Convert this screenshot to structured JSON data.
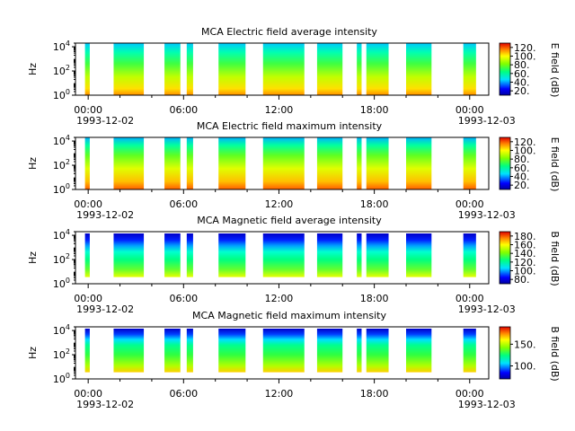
{
  "chart_data": [
    {
      "type": "heatmap",
      "title": "MCA  Electric field average intensity",
      "ylabel": "Hz",
      "yscale": "log",
      "ylim": [
        1,
        20000
      ],
      "y_ticks": [
        {
          "base": "10",
          "exp": "0"
        },
        {
          "base": "10",
          "exp": "2"
        },
        {
          "base": "10",
          "exp": "4"
        }
      ],
      "x_ticks": [
        {
          "time": "00:00",
          "date": "1993-12-02"
        },
        {
          "time": "06:00",
          "date": ""
        },
        {
          "time": "12:00",
          "date": ""
        },
        {
          "time": "18:00",
          "date": ""
        },
        {
          "time": "00:00",
          "date": "1993-12-03"
        }
      ],
      "colorbar": {
        "label": "E field (dB)",
        "range": [
          10,
          130
        ],
        "ticks": [
          "20.",
          "40.",
          "60.",
          "80.",
          "100.",
          "120."
        ]
      },
      "segments_hours": [
        [
          -0.2,
          0.1
        ],
        [
          1.6,
          3.5
        ],
        [
          4.8,
          5.8
        ],
        [
          6.2,
          6.6
        ],
        [
          8.2,
          9.9
        ],
        [
          11.0,
          13.6
        ],
        [
          14.4,
          16.0
        ],
        [
          16.9,
          17.2
        ],
        [
          17.5,
          18.9
        ],
        [
          20.0,
          21.6
        ],
        [
          23.6,
          24.4
        ]
      ]
    },
    {
      "type": "heatmap",
      "title": "MCA  Electric field maximum intensity",
      "ylabel": "Hz",
      "yscale": "log",
      "ylim": [
        1,
        20000
      ],
      "y_ticks": [
        {
          "base": "10",
          "exp": "0"
        },
        {
          "base": "10",
          "exp": "2"
        },
        {
          "base": "10",
          "exp": "4"
        }
      ],
      "x_ticks": [
        {
          "time": "00:00",
          "date": "1993-12-02"
        },
        {
          "time": "06:00",
          "date": ""
        },
        {
          "time": "12:00",
          "date": ""
        },
        {
          "time": "18:00",
          "date": ""
        },
        {
          "time": "00:00",
          "date": "1993-12-03"
        }
      ],
      "colorbar": {
        "label": "E field (dB)",
        "range": [
          10,
          130
        ],
        "ticks": [
          "20.",
          "40.",
          "60.",
          "80.",
          "100.",
          "120."
        ]
      },
      "segments_hours": [
        [
          -0.2,
          0.1
        ],
        [
          1.6,
          3.5
        ],
        [
          4.8,
          5.8
        ],
        [
          6.2,
          6.6
        ],
        [
          8.2,
          9.9
        ],
        [
          11.0,
          13.6
        ],
        [
          14.4,
          16.0
        ],
        [
          16.9,
          17.2
        ],
        [
          17.5,
          18.9
        ],
        [
          20.0,
          21.6
        ],
        [
          23.6,
          24.4
        ]
      ]
    },
    {
      "type": "heatmap",
      "title": "MCA  Magnetic field average intensity",
      "ylabel": "Hz",
      "yscale": "log",
      "ylim": [
        1,
        20000
      ],
      "y_ticks": [
        {
          "base": "10",
          "exp": "0"
        },
        {
          "base": "10",
          "exp": "2"
        },
        {
          "base": "10",
          "exp": "4"
        }
      ],
      "x_ticks": [
        {
          "time": "00:00",
          "date": "1993-12-02"
        },
        {
          "time": "06:00",
          "date": ""
        },
        {
          "time": "12:00",
          "date": ""
        },
        {
          "time": "18:00",
          "date": ""
        },
        {
          "time": "00:00",
          "date": "1993-12-03"
        }
      ],
      "colorbar": {
        "label": "B field (dB)",
        "range": [
          70,
          190
        ],
        "ticks": [
          "80.",
          "100.",
          "120.",
          "140.",
          "160.",
          "180."
        ]
      },
      "segments_hours": [
        [
          -0.2,
          0.1
        ],
        [
          1.6,
          3.5
        ],
        [
          4.8,
          5.8
        ],
        [
          6.2,
          6.6
        ],
        [
          8.2,
          9.9
        ],
        [
          11.0,
          13.6
        ],
        [
          14.4,
          16.0
        ],
        [
          16.9,
          17.2
        ],
        [
          17.5,
          18.9
        ],
        [
          20.0,
          21.6
        ],
        [
          23.6,
          24.4
        ]
      ]
    },
    {
      "type": "heatmap",
      "title": "MCA  Magnetic field maximum intensity",
      "ylabel": "Hz",
      "yscale": "log",
      "ylim": [
        1,
        20000
      ],
      "y_ticks": [
        {
          "base": "10",
          "exp": "0"
        },
        {
          "base": "10",
          "exp": "2"
        },
        {
          "base": "10",
          "exp": "4"
        }
      ],
      "x_ticks": [
        {
          "time": "00:00",
          "date": "1993-12-02"
        },
        {
          "time": "06:00",
          "date": ""
        },
        {
          "time": "12:00",
          "date": ""
        },
        {
          "time": "18:00",
          "date": ""
        },
        {
          "time": "00:00",
          "date": "1993-12-03"
        }
      ],
      "colorbar": {
        "label": "B field (dB)",
        "range": [
          70,
          190
        ],
        "ticks": [
          "100.",
          "150."
        ]
      },
      "segments_hours": [
        [
          -0.2,
          0.1
        ],
        [
          1.6,
          3.5
        ],
        [
          4.8,
          5.8
        ],
        [
          6.2,
          6.6
        ],
        [
          8.2,
          9.9
        ],
        [
          11.0,
          13.6
        ],
        [
          14.4,
          16.0
        ],
        [
          16.9,
          17.2
        ],
        [
          17.5,
          18.9
        ],
        [
          20.0,
          21.6
        ],
        [
          23.6,
          24.4
        ]
      ]
    }
  ]
}
